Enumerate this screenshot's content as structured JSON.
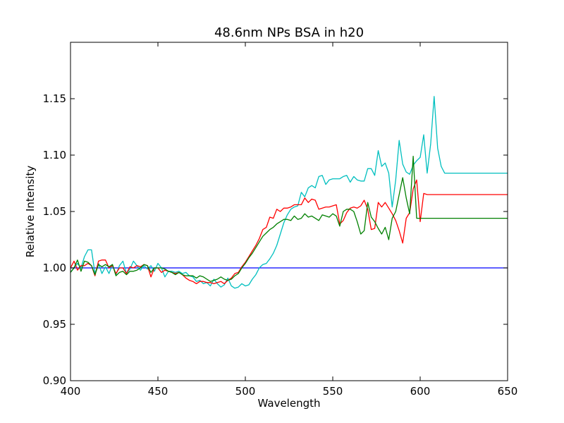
{
  "chart_data": {
    "type": "line",
    "title": "48.6nm NPs BSA in h20",
    "xlabel": "Wavelength",
    "ylabel": "Relative Intensity",
    "xlim": [
      400,
      650
    ],
    "ylim": [
      0.9,
      1.2
    ],
    "x_ticks": [
      400,
      450,
      500,
      550,
      600,
      650
    ],
    "x_tick_labels": [
      "400",
      "450",
      "500",
      "550",
      "600",
      "650"
    ],
    "y_ticks": [
      0.9,
      0.95,
      1.0,
      1.05,
      1.1,
      1.15
    ],
    "y_tick_labels": [
      "0.90",
      "0.95",
      "1.00",
      "1.05",
      "1.10",
      "1.15"
    ],
    "grid": false,
    "x": [
      400,
      402,
      404,
      406,
      408,
      410,
      412,
      414,
      416,
      418,
      420,
      422,
      424,
      426,
      428,
      430,
      432,
      434,
      436,
      438,
      440,
      442,
      444,
      446,
      448,
      450,
      452,
      454,
      456,
      458,
      460,
      462,
      464,
      466,
      468,
      470,
      472,
      474,
      476,
      478,
      480,
      482,
      484,
      486,
      488,
      490,
      492,
      494,
      496,
      498,
      500,
      502,
      504,
      506,
      508,
      510,
      512,
      514,
      516,
      518,
      520,
      522,
      524,
      526,
      528,
      530,
      532,
      534,
      536,
      538,
      540,
      542,
      544,
      546,
      548,
      550,
      552,
      554,
      556,
      558,
      560,
      562,
      564,
      566,
      568,
      570,
      572,
      574,
      576,
      578,
      580,
      582,
      584,
      586,
      588,
      590,
      592,
      594,
      596,
      598,
      600,
      602,
      604,
      606,
      608,
      610,
      612,
      614,
      616,
      618,
      620,
      622,
      624,
      626,
      628,
      630,
      632,
      634,
      636,
      638,
      640,
      642,
      644,
      646,
      648,
      650
    ],
    "series": [
      {
        "color": "#0000ff",
        "values": [
          1.0,
          1.0,
          1.0,
          1.0,
          1.0,
          1.0,
          1.0,
          1.0,
          1.0,
          1.0,
          1.0,
          1.0,
          1.0,
          1.0,
          1.0,
          1.0,
          1.0,
          1.0,
          1.0,
          1.0,
          1.0,
          1.0,
          1.0,
          1.0,
          1.0,
          1.0,
          1.0,
          1.0,
          1.0,
          1.0,
          1.0,
          1.0,
          1.0,
          1.0,
          1.0,
          1.0,
          1.0,
          1.0,
          1.0,
          1.0,
          1.0,
          1.0,
          1.0,
          1.0,
          1.0,
          1.0,
          1.0,
          1.0,
          1.0,
          1.0,
          1.0,
          1.0,
          1.0,
          1.0,
          1.0,
          1.0,
          1.0,
          1.0,
          1.0,
          1.0,
          1.0,
          1.0,
          1.0,
          1.0,
          1.0,
          1.0,
          1.0,
          1.0,
          1.0,
          1.0,
          1.0,
          1.0,
          1.0,
          1.0,
          1.0,
          1.0,
          1.0,
          1.0,
          1.0,
          1.0,
          1.0,
          1.0,
          1.0,
          1.0,
          1.0,
          1.0,
          1.0,
          1.0,
          1.0,
          1.0,
          1.0,
          1.0,
          1.0,
          1.0,
          1.0,
          1.0,
          1.0,
          1.0,
          1.0,
          1.0,
          1.0,
          1.0,
          1.0,
          1.0,
          1.0,
          1.0,
          1.0,
          1.0,
          1.0,
          1.0,
          1.0,
          1.0,
          1.0,
          1.0,
          1.0,
          1.0,
          1.0,
          1.0,
          1.0,
          1.0,
          1.0,
          1.0,
          1.0,
          1.0,
          1.0,
          1.0
        ]
      },
      {
        "color": "#00bfbf",
        "values": [
          0.996,
          1.0,
          1.004,
          1.0,
          1.01,
          1.016,
          1.016,
          0.995,
          1.004,
          0.995,
          1.001,
          0.995,
          1.003,
          0.994,
          1.002,
          1.006,
          0.995,
          0.999,
          1.006,
          1.002,
          0.998,
          1.002,
          0.999,
          1.002,
          0.997,
          1.004,
          1.0,
          0.992,
          0.997,
          0.997,
          0.996,
          0.997,
          0.995,
          0.996,
          0.993,
          0.992,
          0.988,
          0.989,
          0.986,
          0.987,
          0.984,
          0.99,
          0.986,
          0.983,
          0.985,
          0.991,
          0.984,
          0.982,
          0.983,
          0.986,
          0.984,
          0.985,
          0.99,
          0.994,
          1.0,
          1.003,
          1.004,
          1.008,
          1.013,
          1.02,
          1.03,
          1.04,
          1.047,
          1.052,
          1.054,
          1.055,
          1.067,
          1.063,
          1.071,
          1.073,
          1.071,
          1.081,
          1.082,
          1.074,
          1.078,
          1.079,
          1.079,
          1.079,
          1.081,
          1.082,
          1.076,
          1.081,
          1.078,
          1.077,
          1.077,
          1.088,
          1.088,
          1.082,
          1.104,
          1.09,
          1.093,
          1.084,
          1.054,
          1.078,
          1.113,
          1.092,
          1.085,
          1.083,
          1.091,
          1.095,
          1.098,
          1.118,
          1.084,
          1.11,
          1.152,
          1.106,
          1.09,
          1.084,
          1.084,
          1.084,
          1.084,
          1.084,
          1.084,
          1.084,
          1.084,
          1.084,
          1.084,
          1.084,
          1.084,
          1.084,
          1.084,
          1.084,
          1.084,
          1.084,
          1.084,
          1.084
        ]
      },
      {
        "color": "#ff0000",
        "values": [
          1.0,
          1.006,
          0.998,
          1.002,
          1.002,
          1.004,
          1.002,
          0.993,
          1.006,
          1.007,
          1.007,
          1.0,
          1.002,
          0.995,
          1.0,
          1.0,
          0.995,
          1.001,
          1.0,
          1.002,
          1.001,
          1.003,
          1.002,
          0.992,
          1.0,
          1.0,
          0.996,
          0.998,
          0.997,
          0.996,
          0.995,
          0.996,
          0.994,
          0.991,
          0.989,
          0.988,
          0.986,
          0.988,
          0.988,
          0.987,
          0.987,
          0.986,
          0.987,
          0.988,
          0.986,
          0.989,
          0.991,
          0.995,
          0.996,
          1.001,
          1.005,
          1.01,
          1.015,
          1.02,
          1.026,
          1.034,
          1.036,
          1.045,
          1.044,
          1.052,
          1.05,
          1.053,
          1.053,
          1.054,
          1.056,
          1.056,
          1.056,
          1.062,
          1.058,
          1.061,
          1.06,
          1.052,
          1.053,
          1.054,
          1.054,
          1.055,
          1.056,
          1.039,
          1.042,
          1.049,
          1.053,
          1.054,
          1.053,
          1.055,
          1.06,
          1.052,
          1.034,
          1.035,
          1.058,
          1.054,
          1.058,
          1.053,
          1.048,
          1.042,
          1.033,
          1.022,
          1.044,
          1.049,
          1.07,
          1.078,
          1.041,
          1.066,
          1.065,
          1.065,
          1.065,
          1.065,
          1.065,
          1.065,
          1.065,
          1.065,
          1.065,
          1.065,
          1.065,
          1.065,
          1.065,
          1.065,
          1.065,
          1.065,
          1.065,
          1.065,
          1.065,
          1.065,
          1.065,
          1.065,
          1.065,
          1.065
        ]
      },
      {
        "color": "#008000",
        "values": [
          0.996,
          1.0,
          1.007,
          0.997,
          1.006,
          1.005,
          1.002,
          0.994,
          1.003,
          1.001,
          1.003,
          1.001,
          1.003,
          0.993,
          0.996,
          0.997,
          0.994,
          0.997,
          0.997,
          0.998,
          1.0,
          1.003,
          1.002,
          0.996,
          1.0,
          1.0,
          1.0,
          0.999,
          0.997,
          0.996,
          0.994,
          0.996,
          0.994,
          0.993,
          0.993,
          0.993,
          0.991,
          0.993,
          0.992,
          0.99,
          0.988,
          0.989,
          0.99,
          0.992,
          0.99,
          0.989,
          0.99,
          0.993,
          0.995,
          1.0,
          1.004,
          1.009,
          1.013,
          1.018,
          1.023,
          1.028,
          1.031,
          1.034,
          1.036,
          1.039,
          1.041,
          1.043,
          1.043,
          1.042,
          1.046,
          1.043,
          1.044,
          1.048,
          1.045,
          1.046,
          1.044,
          1.042,
          1.047,
          1.046,
          1.045,
          1.048,
          1.046,
          1.037,
          1.05,
          1.052,
          1.052,
          1.05,
          1.041,
          1.03,
          1.033,
          1.058,
          1.045,
          1.041,
          1.035,
          1.03,
          1.036,
          1.025,
          1.044,
          1.05,
          1.065,
          1.08,
          1.062,
          1.048,
          1.099,
          1.044,
          1.044,
          1.044,
          1.044,
          1.044,
          1.044,
          1.044,
          1.044,
          1.044,
          1.044,
          1.044,
          1.044,
          1.044,
          1.044,
          1.044,
          1.044,
          1.044,
          1.044,
          1.044,
          1.044,
          1.044,
          1.044,
          1.044,
          1.044,
          1.044,
          1.044,
          1.044
        ]
      }
    ]
  }
}
